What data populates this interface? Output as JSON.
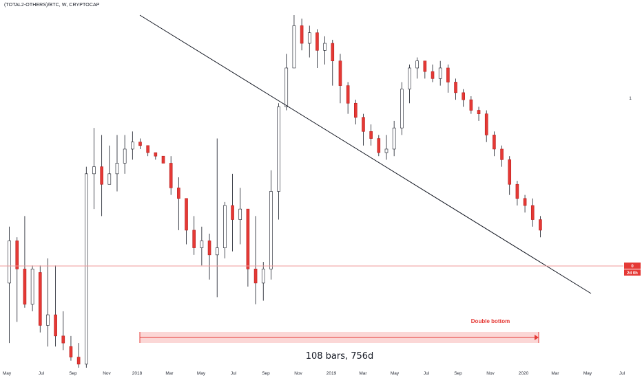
{
  "header": {
    "symbol_label": "(TOTAL2-OTHERS)/BTC, W, CRYPTOCAP"
  },
  "chart_data": {
    "type": "candlestick",
    "title": "(TOTAL2-OTHERS)/BTC, W, CRYPTOCAP",
    "timeframe": "W",
    "x_axis_labels": [
      "May",
      "Jul",
      "Sep",
      "Nov",
      "2018",
      "Mar",
      "May",
      "Jul",
      "Sep",
      "Nov",
      "2019",
      "Mar",
      "May",
      "Jul",
      "Sep",
      "Nov",
      "2020",
      "Mar",
      "May",
      "Jul"
    ],
    "y_axis_labels": [
      "1"
    ],
    "price_tags": [
      {
        "text": "0",
        "color": "#e53935"
      },
      {
        "text": "2d 0h",
        "color": "#e53935"
      }
    ],
    "annotations": {
      "double_bottom": "Double bottom",
      "range_label": "108 bars, 756d"
    },
    "colors": {
      "up": "#ffffff",
      "down": "#e53935",
      "outline": "#b71c1c",
      "trendline": "#131722",
      "price_line": "#ef9a9a",
      "range_fill": "#fbd3d1"
    },
    "series": [
      {
        "name": "candles_relative",
        "values": [
          [
            0.24,
            0.36,
            0.4,
            0.07
          ],
          [
            0.36,
            0.28,
            0.37,
            0.13
          ],
          [
            0.28,
            0.18,
            0.43,
            0.17
          ],
          [
            0.18,
            0.28,
            0.29,
            0.16
          ],
          [
            0.27,
            0.12,
            0.29,
            0.1
          ],
          [
            0.12,
            0.15,
            0.31,
            0.06
          ],
          [
            0.15,
            0.09,
            0.29,
            0.06
          ],
          [
            0.09,
            0.07,
            0.16,
            0.05
          ],
          [
            0.06,
            0.03,
            0.09,
            0.02
          ],
          [
            0.03,
            0.01,
            0.07,
            0.0
          ],
          [
            0.01,
            0.55,
            0.57,
            0.0
          ],
          [
            0.55,
            0.57,
            0.68,
            0.45
          ],
          [
            0.57,
            0.52,
            0.66,
            0.43
          ],
          [
            0.52,
            0.55,
            0.63,
            0.52
          ],
          [
            0.55,
            0.58,
            0.66,
            0.5
          ],
          [
            0.58,
            0.62,
            0.66,
            0.55
          ],
          [
            0.62,
            0.64,
            0.67,
            0.59
          ],
          [
            0.64,
            0.63,
            0.65,
            0.62
          ],
          [
            0.63,
            0.61,
            0.63,
            0.6
          ],
          [
            0.61,
            0.6,
            0.61,
            0.59
          ],
          [
            0.6,
            0.58,
            0.59,
            0.58
          ],
          [
            0.58,
            0.51,
            0.6,
            0.49
          ],
          [
            0.51,
            0.48,
            0.54,
            0.39
          ],
          [
            0.48,
            0.39,
            0.46,
            0.35
          ],
          [
            0.39,
            0.34,
            0.43,
            0.32
          ],
          [
            0.34,
            0.36,
            0.4,
            0.29
          ],
          [
            0.36,
            0.32,
            0.38,
            0.25
          ],
          [
            0.32,
            0.34,
            0.65,
            0.2
          ],
          [
            0.34,
            0.46,
            0.47,
            0.31
          ],
          [
            0.46,
            0.42,
            0.55,
            0.33
          ],
          [
            0.42,
            0.45,
            0.51,
            0.35
          ],
          [
            0.45,
            0.28,
            0.4,
            0.23
          ],
          [
            0.28,
            0.24,
            0.43,
            0.18
          ],
          [
            0.24,
            0.28,
            0.3,
            0.19
          ],
          [
            0.28,
            0.5,
            0.56,
            0.25
          ],
          [
            0.5,
            0.74,
            0.75,
            0.42
          ],
          [
            0.74,
            0.85,
            0.89,
            0.73
          ],
          [
            0.85,
            0.97,
            1.0,
            0.85
          ],
          [
            0.97,
            0.92,
            0.99,
            0.9
          ],
          [
            0.92,
            0.95,
            0.97,
            0.88
          ],
          [
            0.95,
            0.9,
            0.96,
            0.85
          ],
          [
            0.9,
            0.92,
            0.94,
            0.86
          ],
          [
            0.92,
            0.87,
            0.93,
            0.8
          ],
          [
            0.87,
            0.8,
            0.89,
            0.75
          ],
          [
            0.8,
            0.75,
            0.81,
            0.72
          ],
          [
            0.75,
            0.71,
            0.76,
            0.69
          ],
          [
            0.71,
            0.67,
            0.72,
            0.63
          ],
          [
            0.67,
            0.65,
            0.69,
            0.63
          ],
          [
            0.65,
            0.61,
            0.66,
            0.6
          ],
          [
            0.61,
            0.62,
            0.66,
            0.59
          ],
          [
            0.62,
            0.68,
            0.7,
            0.6
          ],
          [
            0.68,
            0.79,
            0.81,
            0.66
          ],
          [
            0.79,
            0.85,
            0.86,
            0.75
          ],
          [
            0.85,
            0.87,
            0.88,
            0.82
          ],
          [
            0.87,
            0.84,
            0.87,
            0.82
          ],
          [
            0.84,
            0.82,
            0.86,
            0.81
          ],
          [
            0.82,
            0.85,
            0.87,
            0.8
          ],
          [
            0.85,
            0.81,
            0.86,
            0.78
          ],
          [
            0.81,
            0.78,
            0.82,
            0.76
          ],
          [
            0.78,
            0.76,
            0.79,
            0.74
          ],
          [
            0.76,
            0.73,
            0.77,
            0.72
          ],
          [
            0.73,
            0.72,
            0.74,
            0.7
          ],
          [
            0.72,
            0.66,
            0.73,
            0.64
          ],
          [
            0.66,
            0.62,
            0.67,
            0.6
          ],
          [
            0.62,
            0.59,
            0.63,
            0.57
          ],
          [
            0.59,
            0.52,
            0.6,
            0.49
          ],
          [
            0.52,
            0.48,
            0.53,
            0.46
          ],
          [
            0.48,
            0.46,
            0.49,
            0.44
          ],
          [
            0.46,
            0.42,
            0.48,
            0.4
          ],
          [
            0.42,
            0.39,
            0.43,
            0.37
          ]
        ]
      }
    ]
  }
}
